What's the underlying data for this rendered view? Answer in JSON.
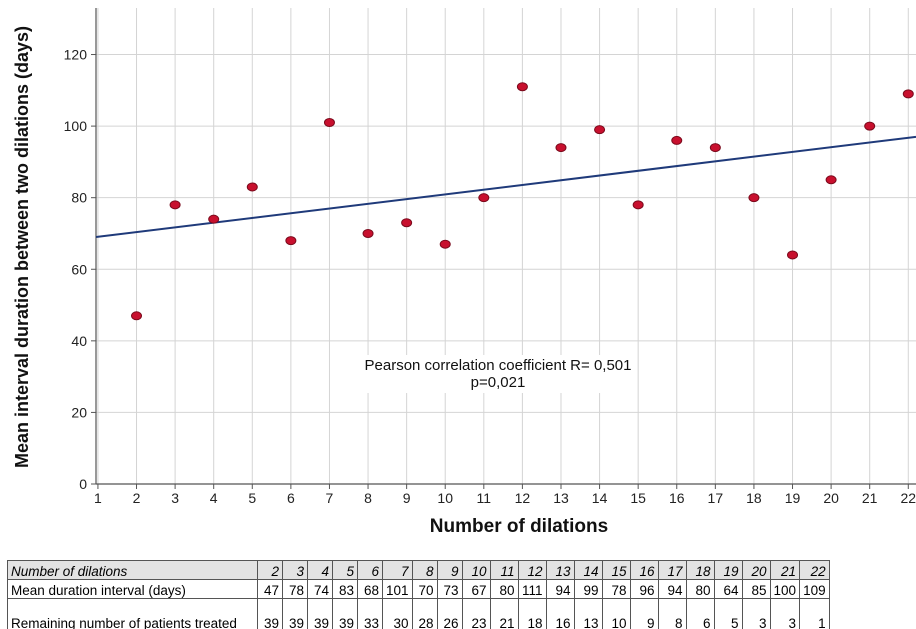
{
  "chart_data": {
    "type": "scatter",
    "ylabel": "Mean interval duration between two dilations (days)",
    "xlabel": "Number of dilations",
    "x_ticks": [
      "1",
      "2",
      "3",
      "4",
      "5",
      "6",
      "7",
      "8",
      "9",
      "10",
      "11",
      "12",
      "13",
      "14",
      "15",
      "16",
      "17",
      "18",
      "19",
      "20",
      "21",
      "22"
    ],
    "y_ticks": [
      "0",
      "20",
      "40",
      "60",
      "80",
      "100",
      "120"
    ],
    "xlim": [
      0.95,
      22.2
    ],
    "ylim": [
      0,
      133
    ],
    "grid": true,
    "points": [
      {
        "x": 2,
        "y": 47
      },
      {
        "x": 3,
        "y": 78
      },
      {
        "x": 4,
        "y": 74
      },
      {
        "x": 5,
        "y": 83
      },
      {
        "x": 6,
        "y": 68
      },
      {
        "x": 7,
        "y": 101
      },
      {
        "x": 8,
        "y": 70
      },
      {
        "x": 9,
        "y": 73
      },
      {
        "x": 10,
        "y": 67
      },
      {
        "x": 11,
        "y": 80
      },
      {
        "x": 12,
        "y": 111
      },
      {
        "x": 13,
        "y": 94
      },
      {
        "x": 14,
        "y": 99
      },
      {
        "x": 15,
        "y": 78
      },
      {
        "x": 16,
        "y": 96
      },
      {
        "x": 17,
        "y": 94
      },
      {
        "x": 18,
        "y": 80
      },
      {
        "x": 19,
        "y": 64
      },
      {
        "x": 20,
        "y": 85
      },
      {
        "x": 21,
        "y": 100
      },
      {
        "x": 22,
        "y": 109
      }
    ],
    "trendline": {
      "x": [
        0.95,
        22.2
      ],
      "y": [
        69,
        97
      ]
    },
    "annotation": [
      "Pearson correlation coefficient R= 0,501",
      "p=0,021"
    ],
    "colors": {
      "point": "#c8102e",
      "point_edge": "#7a0a1c",
      "trend": "#1f3a7a",
      "grid": "#d4d4d4",
      "axis": "#555555"
    }
  },
  "table": {
    "rows": [
      {
        "label": "Number of dilations",
        "values": [
          "2",
          "3",
          "4",
          "5",
          "6",
          "7",
          "8",
          "9",
          "10",
          "11",
          "12",
          "13",
          "14",
          "15",
          "16",
          "17",
          "18",
          "19",
          "20",
          "21",
          "22"
        ]
      },
      {
        "label": "Mean duration interval (days)",
        "values": [
          "47",
          "78",
          "74",
          "83",
          "68",
          "101",
          "70",
          "73",
          "67",
          "80",
          "111",
          "94",
          "99",
          "78",
          "96",
          "94",
          "80",
          "64",
          "85",
          "100",
          "109"
        ]
      },
      {
        "label": "Remaining number of patients treated",
        "values": [
          "39",
          "39",
          "39",
          "39",
          "33",
          "30",
          "28",
          "26",
          "23",
          "21",
          "18",
          "16",
          "13",
          "10",
          "9",
          "8",
          "6",
          "5",
          "3",
          "3",
          "1"
        ]
      }
    ]
  }
}
